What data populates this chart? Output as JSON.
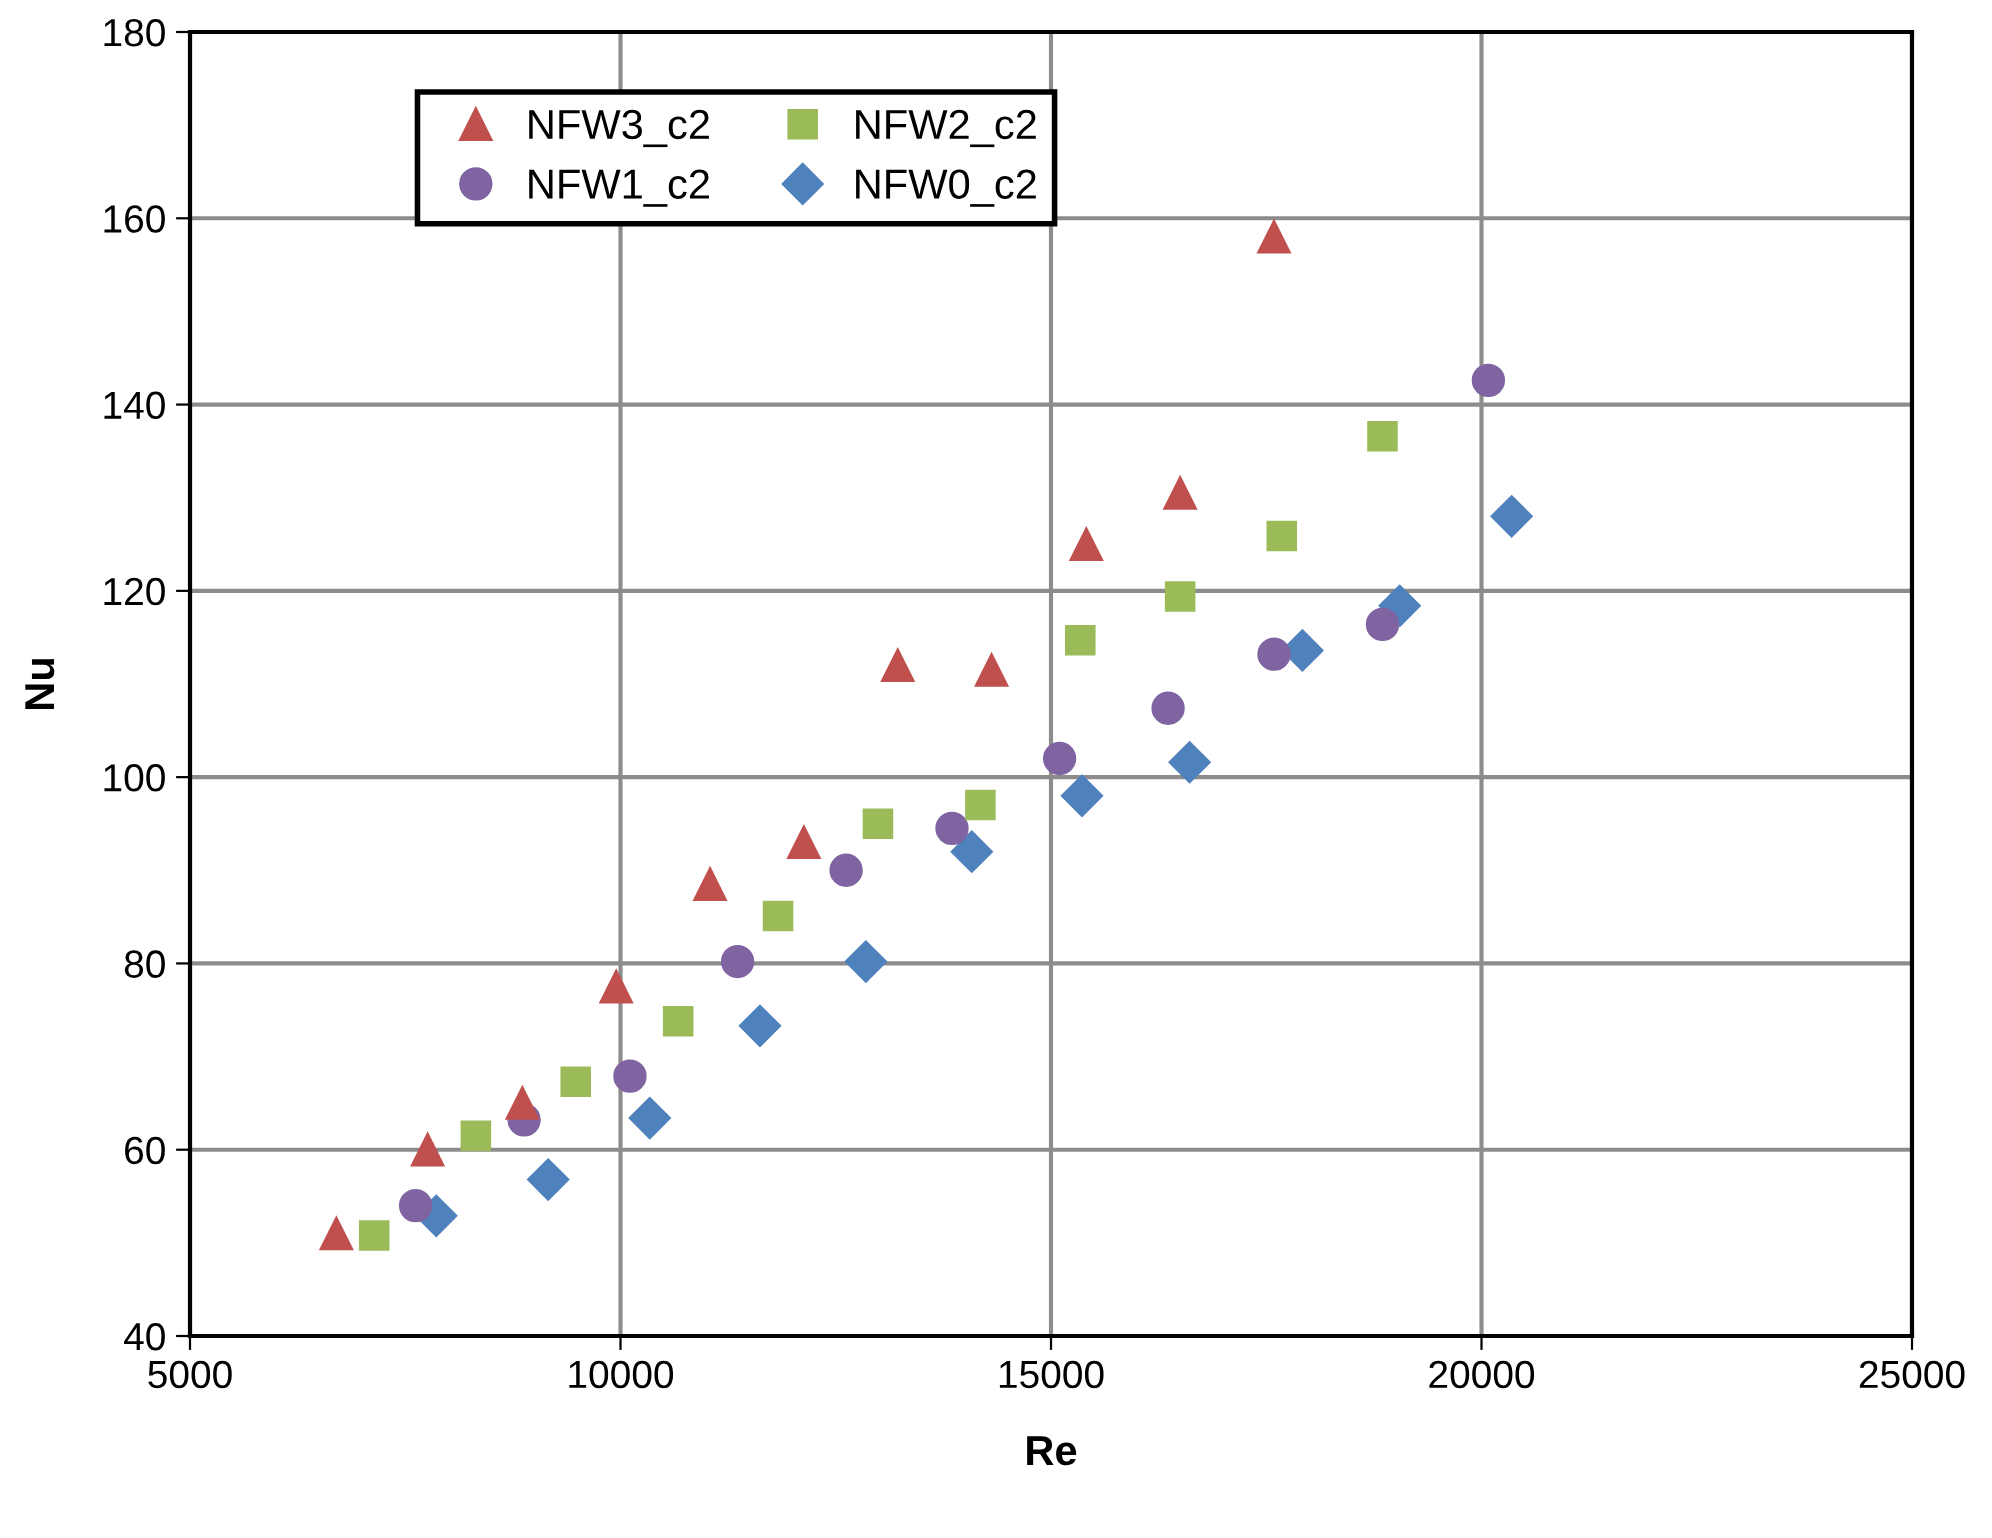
{
  "chart_data": {
    "type": "scatter",
    "xlabel": "Re",
    "ylabel": "Nu",
    "xlim": [
      5000,
      25000
    ],
    "xticks": [
      5000,
      10000,
      15000,
      20000,
      25000
    ],
    "ylim": [
      40,
      180
    ],
    "yticks": [
      40,
      60,
      80,
      100,
      120,
      140,
      160,
      180
    ],
    "grid": true,
    "legend": "top left",
    "series": [
      {
        "name": "NFW3_c2",
        "color": "#c0504d",
        "marker": "triangle",
        "x": [
          6700,
          7760,
          8860,
          9950,
          11040,
          12130,
          13220,
          14310,
          15410,
          16500,
          17590
        ],
        "values": [
          51,
          60,
          65,
          77.5,
          88.5,
          93,
          112,
          111.5,
          125,
          130.5,
          158
        ]
      },
      {
        "name": "NFW2_c2",
        "color": "#9bbb59",
        "marker": "square",
        "x": [
          7140,
          8320,
          9480,
          10670,
          11830,
          12990,
          14180,
          15340,
          16500,
          17680,
          18850
        ],
        "values": [
          50.8,
          61.5,
          67.3,
          73.8,
          85.1,
          95,
          97,
          114.7,
          119.4,
          125.9,
          136.6
        ]
      },
      {
        "name": "NFW1_c2",
        "color": "#8064a2",
        "marker": "circle",
        "x": [
          7620,
          8880,
          10110,
          11360,
          12620,
          13850,
          15100,
          16360,
          17590,
          18850,
          20080
        ],
        "values": [
          54,
          63.2,
          67.9,
          80.2,
          90,
          94.5,
          102,
          107.4,
          113.2,
          116.4,
          142.6
        ]
      },
      {
        "name": "NFW0_c2",
        "color": "#4f81bd",
        "marker": "diamond",
        "x": [
          7860,
          9160,
          10340,
          11620,
          12850,
          14080,
          15360,
          16610,
          17920,
          19050,
          20350
        ],
        "values": [
          52.9,
          56.8,
          63.4,
          73.3,
          80.2,
          92,
          98,
          101.6,
          113.6,
          118.4,
          128
        ]
      }
    ]
  }
}
